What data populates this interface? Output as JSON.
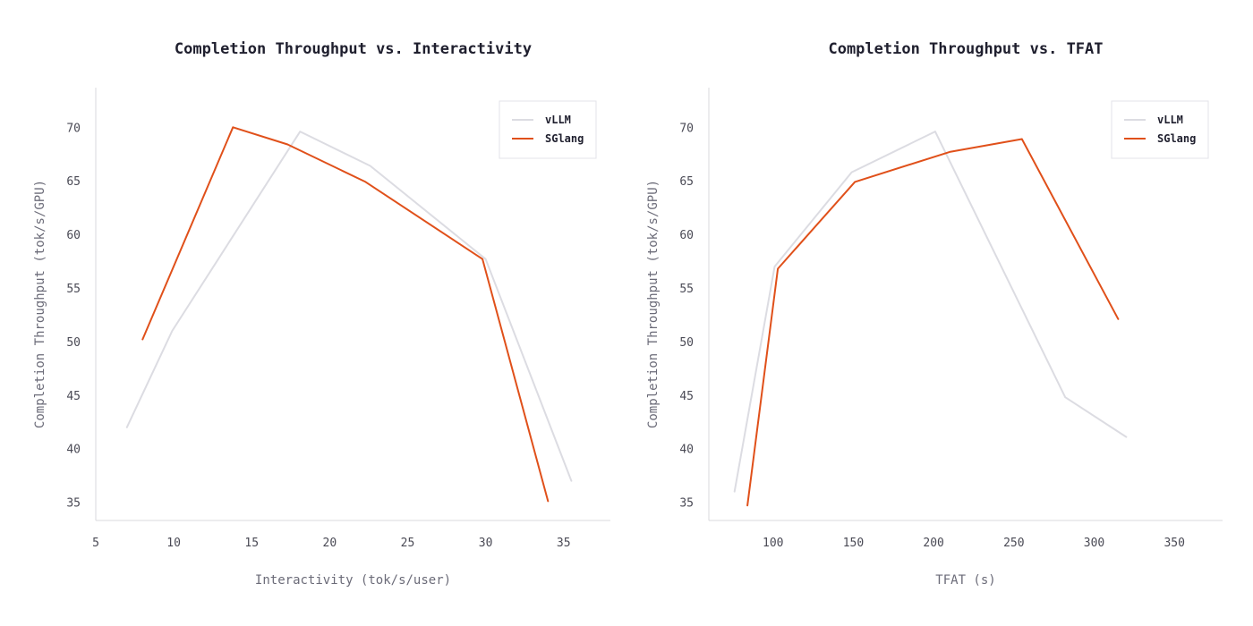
{
  "chart_data": [
    {
      "type": "line",
      "title": "Completion Throughput vs. Interactivity",
      "xlabel": "Interactivity (tok/s/user)",
      "ylabel": "Completion Throughput (tok/s/GPU)",
      "xlim": [
        5,
        38
      ],
      "ylim": [
        33.3,
        73.7
      ],
      "xticks": [
        5,
        10,
        15,
        20,
        25,
        30,
        35
      ],
      "yticks": [
        35,
        40,
        45,
        50,
        55,
        60,
        65,
        70
      ],
      "legend": "top-right",
      "grid": false,
      "series": [
        {
          "name": "vLLM",
          "color": "#dcdce2",
          "x": [
            7.0,
            9.9,
            18.1,
            22.6,
            30.0,
            35.5
          ],
          "y": [
            42.0,
            51.0,
            69.6,
            66.4,
            57.7,
            37.0
          ]
        },
        {
          "name": "SGlang",
          "color": "#e0501a",
          "x": [
            8.0,
            13.8,
            17.3,
            22.3,
            29.8,
            34.0
          ],
          "y": [
            50.2,
            70.0,
            68.4,
            64.9,
            57.7,
            35.1
          ]
        }
      ]
    },
    {
      "type": "line",
      "title": "Completion Throughput vs. TFAT",
      "xlabel": "TFAT (s)",
      "ylabel": "Completion Throughput (tok/s/GPU)",
      "xlim": [
        60,
        380
      ],
      "ylim": [
        33.3,
        73.7
      ],
      "xticks": [
        100,
        150,
        200,
        250,
        300,
        350
      ],
      "yticks": [
        35,
        40,
        45,
        50,
        55,
        60,
        65,
        70
      ],
      "legend": "top-right",
      "grid": false,
      "series": [
        {
          "name": "vLLM",
          "color": "#dcdce2",
          "x": [
            76,
            101,
            149,
            201,
            282,
            320
          ],
          "y": [
            36.0,
            57.0,
            65.8,
            69.6,
            44.8,
            41.1
          ]
        },
        {
          "name": "SGlang",
          "color": "#e0501a",
          "x": [
            84,
            103,
            151,
            210,
            255,
            315
          ],
          "y": [
            34.7,
            56.8,
            64.9,
            67.7,
            68.9,
            52.1
          ]
        }
      ]
    }
  ]
}
